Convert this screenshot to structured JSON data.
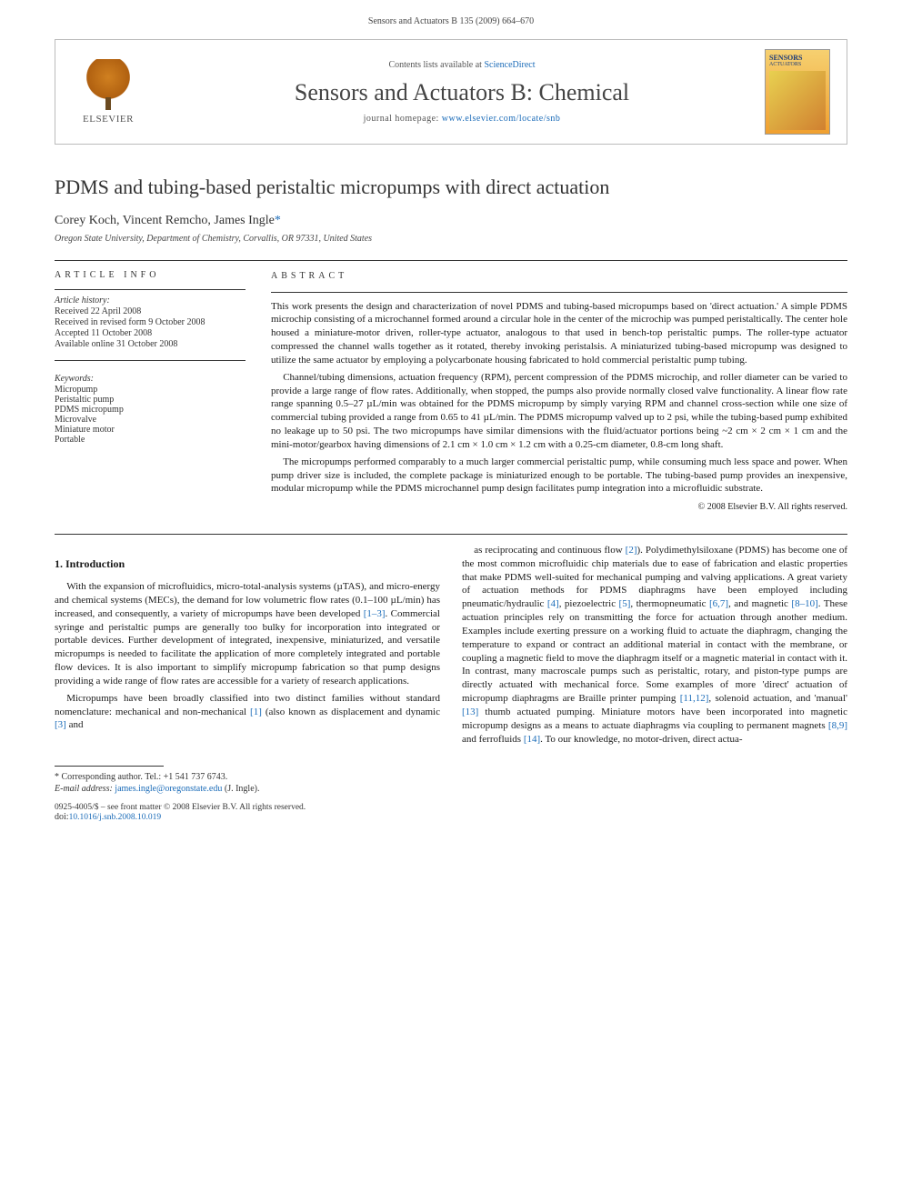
{
  "page_header": "Sensors and Actuators B 135 (2009) 664–670",
  "contents_box": {
    "publisher_name": "ELSEVIER",
    "availability_prefix": "Contents lists available at ",
    "availability_link": "ScienceDirect",
    "journal_name": "Sensors and Actuators B: Chemical",
    "homepage_prefix": "journal homepage: ",
    "homepage_link": "www.elsevier.com/locate/snb",
    "cover_title": "SENSORS",
    "cover_sub": "ACTUATORS"
  },
  "article": {
    "title": "PDMS and tubing-based peristaltic micropumps with direct actuation",
    "authors": "Corey Koch, Vincent Remcho, James Ingle",
    "corr_marker": "*",
    "affiliation": "Oregon State University, Department of Chemistry, Corvallis, OR 97331, United States"
  },
  "info": {
    "heading": "article info",
    "history_label": "Article history:",
    "received": "Received 22 April 2008",
    "revised": "Received in revised form 9 October 2008",
    "accepted": "Accepted 11 October 2008",
    "online": "Available online 31 October 2008",
    "keywords_label": "Keywords:",
    "keywords": [
      "Micropump",
      "Peristaltic pump",
      "PDMS micropump",
      "Microvalve",
      "Miniature motor",
      "Portable"
    ]
  },
  "abstract": {
    "heading": "abstract",
    "p1": "This work presents the design and characterization of novel PDMS and tubing-based micropumps based on 'direct actuation.' A simple PDMS microchip consisting of a microchannel formed around a circular hole in the center of the microchip was pumped peristaltically. The center hole housed a miniature-motor driven, roller-type actuator, analogous to that used in bench-top peristaltic pumps. The roller-type actuator compressed the channel walls together as it rotated, thereby invoking peristalsis. A miniaturized tubing-based micropump was designed to utilize the same actuator by employing a polycarbonate housing fabricated to hold commercial peristaltic pump tubing.",
    "p2": "Channel/tubing dimensions, actuation frequency (RPM), percent compression of the PDMS microchip, and roller diameter can be varied to provide a large range of flow rates. Additionally, when stopped, the pumps also provide normally closed valve functionality. A linear flow rate range spanning 0.5–27 µL/min was obtained for the PDMS micropump by simply varying RPM and channel cross-section while one size of commercial tubing provided a range from 0.65 to 41 µL/min. The PDMS micropump valved up to 2 psi, while the tubing-based pump exhibited no leakage up to 50 psi. The two micropumps have similar dimensions with the fluid/actuator portions being ~2 cm × 2 cm × 1 cm and the mini-motor/gearbox having dimensions of 2.1 cm × 1.0 cm × 1.2 cm with a 0.25-cm diameter, 0.8-cm long shaft.",
    "p3": "The micropumps performed comparably to a much larger commercial peristaltic pump, while consuming much less space and power. When pump driver size is included, the complete package is miniaturized enough to be portable. The tubing-based pump provides an inexpensive, modular micropump while the PDMS microchannel pump design facilitates pump integration into a microfluidic substrate.",
    "copyright": "© 2008 Elsevier B.V. All rights reserved."
  },
  "body": {
    "section_heading": "1. Introduction",
    "p1": "With the expansion of microfluidics, micro-total-analysis systems (µTAS), and micro-energy and chemical systems (MECs), the demand for low volumetric flow rates (0.1–100 µL/min) has increased, and consequently, a variety of micropumps have been developed [1–3]. Commercial syringe and peristaltic pumps are generally too bulky for incorporation into integrated or portable devices. Further development of integrated, inexpensive, miniaturized, and versatile micropumps is needed to facilitate the application of more completely integrated and portable flow devices. It is also important to simplify micropump fabrication so that pump designs providing a wide range of flow rates are accessible for a variety of research applications.",
    "p2": "Micropumps have been broadly classified into two distinct families without standard nomenclature: mechanical and non-mechanical [1] (also known as displacement and dynamic [3] and",
    "p3": "as reciprocating and continuous flow [2]). Polydimethylsiloxane (PDMS) has become one of the most common microfluidic chip materials due to ease of fabrication and elastic properties that make PDMS well-suited for mechanical pumping and valving applications. A great variety of actuation methods for PDMS diaphragms have been employed including pneumatic/hydraulic [4], piezoelectric [5], thermopneumatic [6,7], and magnetic [8–10]. These actuation principles rely on transmitting the force for actuation through another medium. Examples include exerting pressure on a working fluid to actuate the diaphragm, changing the temperature to expand or contract an additional material in contact with the membrane, or coupling a magnetic field to move the diaphragm itself or a magnetic material in contact with it. In contrast, many macroscale pumps such as peristaltic, rotary, and piston-type pumps are directly actuated with mechanical force. Some examples of more 'direct' actuation of micropump diaphragms are Braille printer pumping [11,12], solenoid actuation, and 'manual' [13] thumb actuated pumping. Miniature motors have been incorporated into magnetic micropump designs as a means to actuate diaphragms via coupling to permanent magnets [8,9] and ferrofluids [14]. To our knowledge, no motor-driven, direct actua-"
  },
  "footer": {
    "corr_label": "* Corresponding author. Tel.: +1 541 737 6743.",
    "email_label": "E-mail address: ",
    "email": "james.ingle@oregonstate.edu",
    "email_suffix": " (J. Ingle).",
    "issn": "0925-4005/$ – see front matter © 2008 Elsevier B.V. All rights reserved.",
    "doi_prefix": "doi:",
    "doi": "10.1016/j.snb.2008.10.019"
  },
  "colors": {
    "link": "#1a6bb8",
    "text": "#1a1a1a",
    "muted": "#555555",
    "rule": "#333333",
    "elsevier_orange": "#d08020"
  }
}
